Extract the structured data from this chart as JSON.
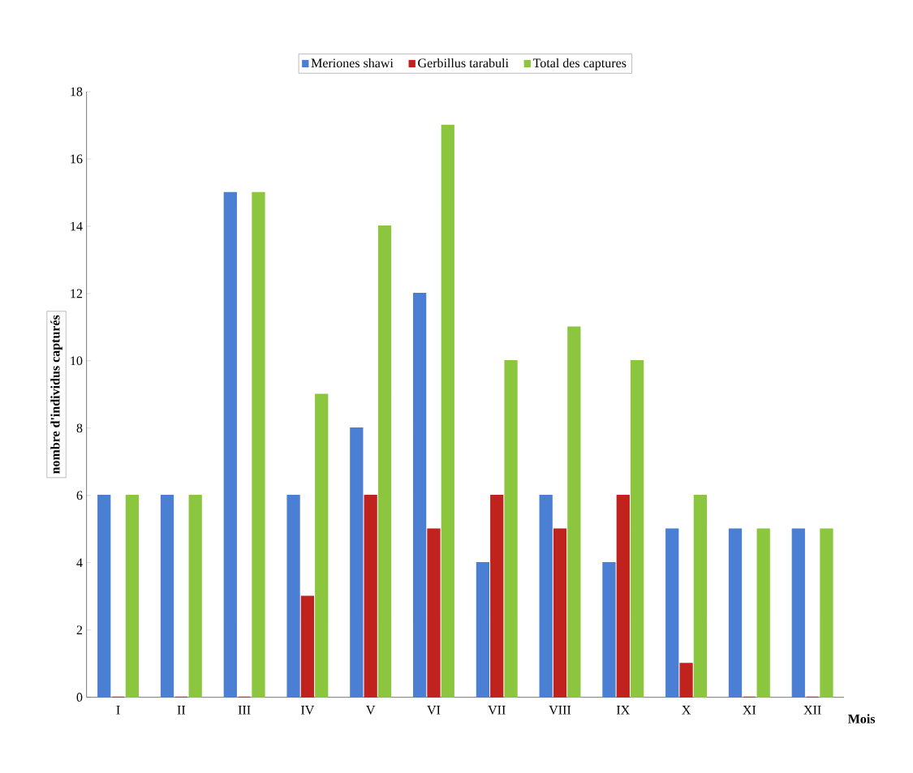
{
  "chart_data": {
    "type": "bar",
    "xlabel": "Mois",
    "ylabel": "nombre d'individus capturés",
    "categories": [
      "I",
      "II",
      "III",
      "IV",
      "V",
      "VI",
      "VII",
      "VIII",
      "IX",
      "X",
      "XI",
      "XII"
    ],
    "series": [
      {
        "name": "Meriones shawi",
        "color": "#4a7fd4",
        "values": [
          6,
          6,
          15,
          6,
          8,
          12,
          4,
          6,
          4,
          5,
          5,
          5
        ]
      },
      {
        "name": "Gerbillus tarabuli",
        "color": "#c0221e",
        "values": [
          0,
          0,
          0,
          3,
          6,
          5,
          6,
          5,
          6,
          1,
          0,
          0
        ]
      },
      {
        "name": "Total des captures",
        "color": "#8cc63f",
        "values": [
          6,
          6,
          15,
          9,
          14,
          17,
          10,
          11,
          10,
          6,
          5,
          5
        ]
      }
    ],
    "ylim": [
      0,
      18
    ],
    "yticks": [
      0,
      2,
      4,
      6,
      8,
      10,
      12,
      14,
      16,
      18
    ],
    "grid": false,
    "legend": "top"
  }
}
